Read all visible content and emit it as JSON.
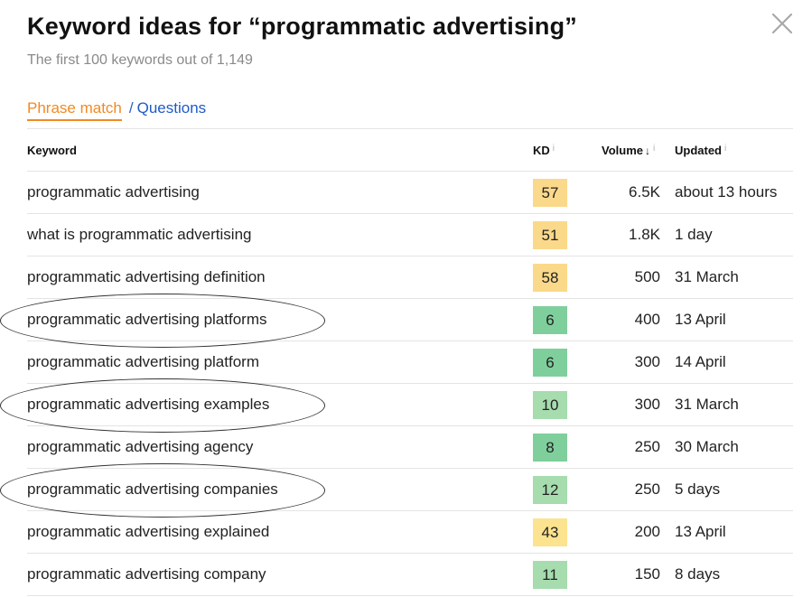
{
  "header": {
    "title": "Keyword ideas for “programmatic advertising”",
    "subtitle": "The first 100 keywords out of 1,149"
  },
  "tabs": {
    "active": "Phrase match",
    "separator": "/",
    "other": "Questions"
  },
  "table": {
    "columns": {
      "keyword": "Keyword",
      "kd": "KD",
      "volume": "Volume",
      "updated": "Updated",
      "info_glyph": "i",
      "sort_glyph": "↓"
    },
    "rows": [
      {
        "keyword": "programmatic advertising",
        "kd": "57",
        "kd_color": "#fbd98a",
        "volume": "6.5K",
        "updated": "about 13 hours"
      },
      {
        "keyword": "what is programmatic advertising",
        "kd": "51",
        "kd_color": "#fbd98a",
        "volume": "1.8K",
        "updated": "1 day"
      },
      {
        "keyword": "programmatic advertising definition",
        "kd": "58",
        "kd_color": "#fbd98a",
        "volume": "500",
        "updated": "31 March"
      },
      {
        "keyword": "programmatic advertising platforms",
        "kd": "6",
        "kd_color": "#7fcf9c",
        "volume": "400",
        "updated": "13 April"
      },
      {
        "keyword": "programmatic advertising platform",
        "kd": "6",
        "kd_color": "#7fcf9c",
        "volume": "300",
        "updated": "14 April"
      },
      {
        "keyword": "programmatic advertising examples",
        "kd": "10",
        "kd_color": "#a6dcae",
        "volume": "300",
        "updated": "31 March"
      },
      {
        "keyword": "programmatic advertising agency",
        "kd": "8",
        "kd_color": "#7fcf9c",
        "volume": "250",
        "updated": "30 March"
      },
      {
        "keyword": "programmatic advertising companies",
        "kd": "12",
        "kd_color": "#a6dcae",
        "volume": "250",
        "updated": "5 days"
      },
      {
        "keyword": "programmatic advertising explained",
        "kd": "43",
        "kd_color": "#fce38f",
        "volume": "200",
        "updated": "13 April"
      },
      {
        "keyword": "programmatic advertising company",
        "kd": "11",
        "kd_color": "#a6dcae",
        "volume": "150",
        "updated": "8 days"
      }
    ]
  },
  "annotations": {
    "circled_rows": [
      3,
      5,
      7
    ]
  },
  "colors": {
    "accent_tab": "#f08a24",
    "link": "#1e5bc6",
    "kd_medium": "#fbd98a",
    "kd_easy": "#7fcf9c",
    "kd_very_easy": "#a6dcae"
  }
}
